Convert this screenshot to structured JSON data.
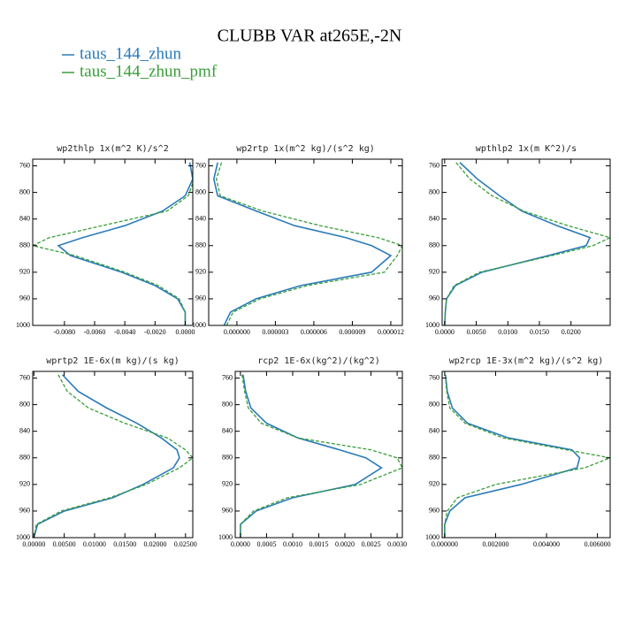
{
  "title": "CLUBB VAR at265E,-2N",
  "legend": [
    {
      "name": "taus_144_zhun",
      "color": "#2b7bb9"
    },
    {
      "name": "taus_144_zhun_pmf",
      "color": "#3a9e3a"
    }
  ],
  "chart_data": [
    {
      "type": "line",
      "title": "wp2thlp  1x(m^2 K)/s^2",
      "y_inverted": true,
      "y": [
        755,
        780,
        805,
        828,
        850,
        868,
        880,
        895,
        920,
        940,
        960,
        980,
        1000
      ],
      "series": [
        {
          "legend": 0,
          "values": [
            0.0003,
            0.0005,
            0.0,
            -0.0015,
            -0.004,
            -0.0068,
            -0.0084,
            -0.0076,
            -0.0042,
            -0.002,
            -0.0005,
            0.0,
            0.0
          ]
        },
        {
          "legend": 1,
          "dashed": true,
          "values": [
            0.0005,
            0.0006,
            0.0002,
            -0.0012,
            -0.0055,
            -0.009,
            -0.0101,
            -0.0073,
            -0.004,
            -0.0018,
            -0.0004,
            0.0,
            0.0
          ]
        }
      ],
      "xlim": [
        -0.0101,
        0.0005
      ],
      "xticks": [
        {
          "value": -0.008,
          "label": "-0.0080"
        },
        {
          "value": -0.006,
          "label": "-0.0060"
        },
        {
          "value": -0.004,
          "label": "-0.0040"
        },
        {
          "value": -0.002,
          "label": "-0.0020"
        },
        {
          "value": 0,
          "label": "0.0000"
        }
      ],
      "ylim": [
        750,
        1000
      ],
      "yticks": [
        760,
        800,
        840,
        880,
        920,
        960,
        1000
      ]
    },
    {
      "type": "line",
      "title": "wp2rtp  1x(m^2 kg)/(s^2 kg)",
      "y_inverted": true,
      "y": [
        755,
        780,
        805,
        828,
        850,
        868,
        880,
        895,
        920,
        940,
        960,
        980,
        1000
      ],
      "series": [
        {
          "legend": 0,
          "values": [
            -1.5e-06,
            -1.8e-06,
            -1.5e-06,
            1.5e-06,
            4.5e-06,
            8.5e-06,
            1.05e-05,
            1.2e-05,
            1.05e-05,
            5e-06,
            1.5e-06,
            -5e-07,
            -1e-06
          ]
        },
        {
          "legend": 1,
          "dashed": true,
          "values": [
            -1.2e-06,
            -1.6e-06,
            -1.3e-06,
            2e-06,
            6.5e-06,
            1.1e-05,
            1.29e-05,
            1.25e-05,
            1.15e-05,
            5.5e-06,
            1.8e-06,
            -3e-07,
            -8e-07
          ]
        }
      ],
      "xlim": [
        -2.2e-06,
        1.29e-05
      ],
      "xticks": [
        {
          "value": 0,
          "label": "0.000000"
        },
        {
          "value": 3e-06,
          "label": "0.000003"
        },
        {
          "value": 6e-06,
          "label": "0.000006"
        },
        {
          "value": 9e-06,
          "label": "0.000009"
        },
        {
          "value": 1.2e-05,
          "label": "0.000012"
        }
      ],
      "ylim": [
        750,
        1000
      ],
      "yticks": [
        760,
        800,
        840,
        880,
        920,
        960,
        1000
      ]
    },
    {
      "type": "line",
      "title": "wpthlp2  1x(m K^2)/s",
      "y_inverted": true,
      "y": [
        755,
        780,
        805,
        828,
        850,
        868,
        880,
        895,
        920,
        940,
        960,
        980,
        1000
      ],
      "series": [
        {
          "legend": 0,
          "values": [
            0.0024,
            0.0052,
            0.0087,
            0.0122,
            0.0178,
            0.023,
            0.0224,
            0.0164,
            0.0059,
            0.0017,
            0.0003,
            0.0001,
            0.0
          ]
        },
        {
          "legend": 1,
          "dashed": true,
          "values": [
            0.0018,
            0.004,
            0.0075,
            0.0125,
            0.0195,
            0.0262,
            0.0235,
            0.017,
            0.0055,
            0.0015,
            0.0003,
            0.0001,
            0.0
          ]
        }
      ],
      "xlim": [
        -0.0004,
        0.0262
      ],
      "xticks": [
        {
          "value": 0,
          "label": "0.0000"
        },
        {
          "value": 0.005,
          "label": "0.0050"
        },
        {
          "value": 0.01,
          "label": "0.0100"
        },
        {
          "value": 0.015,
          "label": "0.0150"
        },
        {
          "value": 0.02,
          "label": "0.0200"
        }
      ],
      "ylim": [
        750,
        1000
      ],
      "yticks": [
        760,
        800,
        840,
        880,
        920,
        960,
        1000
      ]
    },
    {
      "type": "line",
      "title": "wprtp2  1E-6x(m kg)/(s kg)",
      "y_inverted": true,
      "y": [
        755,
        780,
        805,
        828,
        850,
        868,
        880,
        895,
        920,
        940,
        960,
        980,
        1000
      ],
      "series": [
        {
          "legend": 0,
          "values": [
            0.0047,
            0.0073,
            0.012,
            0.017,
            0.021,
            0.0236,
            0.024,
            0.023,
            0.018,
            0.013,
            0.005,
            0.0006,
            0.0
          ]
        },
        {
          "legend": 1,
          "dashed": true,
          "values": [
            0.004,
            0.0055,
            0.009,
            0.015,
            0.022,
            0.025,
            0.0262,
            0.024,
            0.0185,
            0.0125,
            0.0045,
            0.0004,
            0.0
          ]
        }
      ],
      "xlim": [
        -0.0002,
        0.0262
      ],
      "xticks": [
        {
          "value": 0,
          "label": "0.00000"
        },
        {
          "value": 0.005,
          "label": "0.00500"
        },
        {
          "value": 0.01,
          "label": "0.01000"
        },
        {
          "value": 0.015,
          "label": "0.01500"
        },
        {
          "value": 0.02,
          "label": "0.02000"
        },
        {
          "value": 0.025,
          "label": "0.02500"
        }
      ],
      "ylim": [
        750,
        1000
      ],
      "yticks": [
        760,
        800,
        840,
        880,
        920,
        960,
        1000
      ]
    },
    {
      "type": "line",
      "title": "rcp2  1E-6x(kg^2)/(kg^2)",
      "y_inverted": true,
      "y": [
        755,
        780,
        805,
        828,
        850,
        868,
        880,
        895,
        920,
        940,
        960,
        980,
        1000
      ],
      "series": [
        {
          "legend": 0,
          "values": [
            5e-05,
            0.0001,
            0.0002,
            0.0005,
            0.0011,
            0.0019,
            0.0024,
            0.0027,
            0.0022,
            0.001,
            0.0003,
            0.0,
            0.0
          ]
        },
        {
          "legend": 1,
          "dashed": true,
          "values": [
            3e-05,
            8e-05,
            0.00015,
            0.0004,
            0.0011,
            0.0025,
            0.003,
            0.0031,
            0.0023,
            0.0009,
            0.00025,
            0.0,
            0.0
          ]
        }
      ],
      "xlim": [
        -0.0001,
        0.0031
      ],
      "xticks": [
        {
          "value": 0,
          "label": "0.0000"
        },
        {
          "value": 0.0005,
          "label": "0.0005"
        },
        {
          "value": 0.001,
          "label": "0.0010"
        },
        {
          "value": 0.0015,
          "label": "0.0015"
        },
        {
          "value": 0.002,
          "label": "0.0020"
        },
        {
          "value": 0.0025,
          "label": "0.0025"
        },
        {
          "value": 0.003,
          "label": "0.0030"
        }
      ],
      "ylim": [
        750,
        1000
      ],
      "yticks": [
        760,
        800,
        840,
        880,
        920,
        960,
        1000
      ]
    },
    {
      "type": "line",
      "title": "wp2rcp  1E-3x(m^2 kg)/(s^2 kg)",
      "y_inverted": true,
      "y": [
        755,
        780,
        805,
        828,
        850,
        868,
        880,
        895,
        920,
        940,
        960,
        980,
        1000
      ],
      "series": [
        {
          "legend": 0,
          "values": [
            3e-05,
            0.0001,
            0.0003,
            0.0009,
            0.0025,
            0.005,
            0.0053,
            0.0052,
            0.003,
            0.0008,
            0.0002,
            0.0,
            0.0
          ]
        },
        {
          "legend": 1,
          "dashed": true,
          "values": [
            2e-05,
            8e-05,
            0.0002,
            0.0008,
            0.0023,
            0.0048,
            0.0065,
            0.0055,
            0.002,
            0.0005,
            0.0001,
            0.0,
            0.0
          ]
        }
      ],
      "xlim": [
        -0.0001,
        0.0065
      ],
      "xticks": [
        {
          "value": 0,
          "label": "0.000000"
        },
        {
          "value": 0.002,
          "label": "0.002000"
        },
        {
          "value": 0.004,
          "label": "0.004000"
        },
        {
          "value": 0.006,
          "label": "0.006000"
        }
      ],
      "ylim": [
        750,
        1000
      ],
      "yticks": [
        760,
        800,
        840,
        880,
        920,
        960,
        1000
      ]
    }
  ]
}
